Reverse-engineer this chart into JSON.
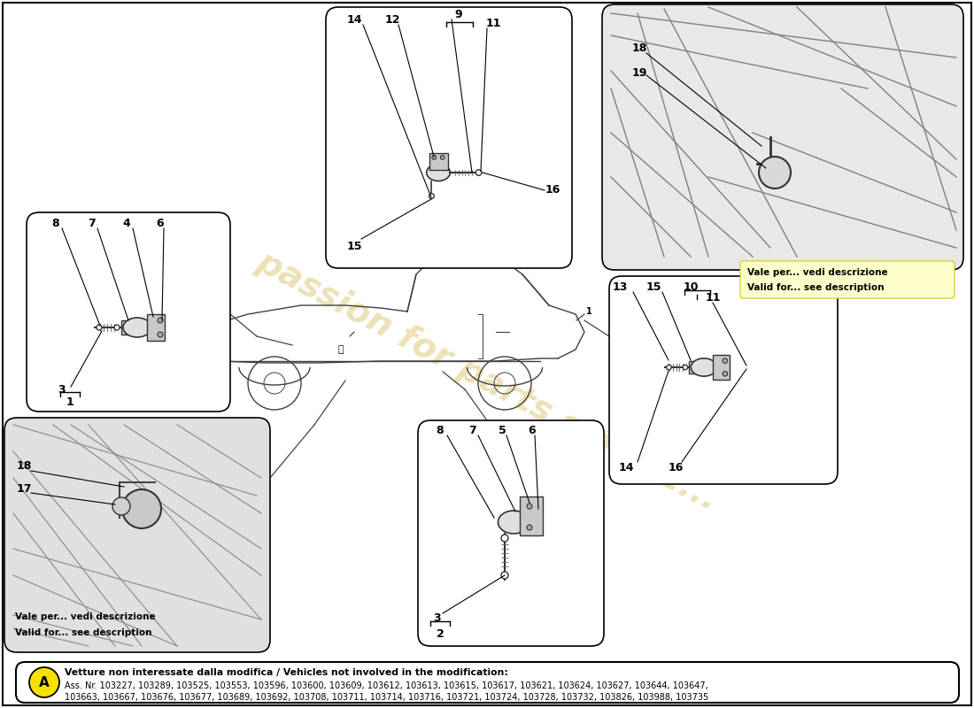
{
  "background_color": "#ffffff",
  "watermark_color": "#d4b84a",
  "watermark_alpha": 0.4,
  "bottom_box": {
    "line1_bold": "Vetture non interessate dalla modifica / Vehicles not involved in the modification:",
    "line2": "Ass. Nr. 103227, 103289, 103525, 103553, 103596, 103600, 103609, 103612, 103613, 103615, 103617, 103621, 103624, 103627, 103644, 103647,",
    "line3": "103663, 103667, 103676, 103677, 103689, 103692, 103708, 103711, 103714, 103716, 103721, 103724, 103728, 103732, 103826, 103988, 103735"
  },
  "note_tr": [
    "Vale per... vedi descrizione",
    "Valid for... see description"
  ],
  "note_bl": [
    "Vale per... vedi descrizione",
    "Valid for... see description"
  ]
}
